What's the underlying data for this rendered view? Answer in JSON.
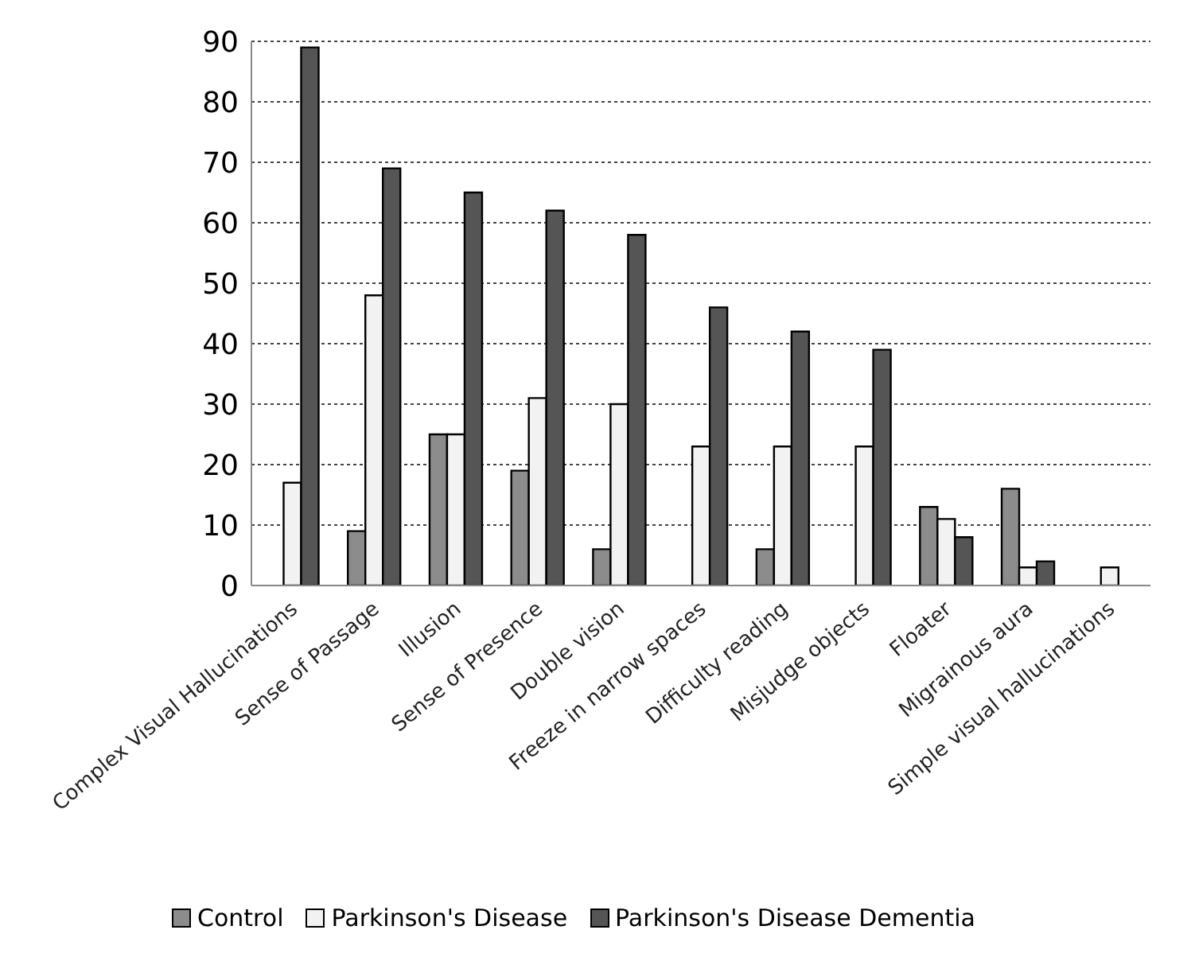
{
  "chart_data": {
    "type": "bar",
    "categories": [
      "Complex Visual Hallucinations",
      "Sense of Passage",
      "Illusion",
      "Sense of Presence",
      "Double vision",
      "Freeze in narrow spaces",
      "Difficulty reading",
      "Misjudge objects",
      "Floater",
      "Migrainous aura",
      "Simple visual hallucinations"
    ],
    "series": [
      {
        "name": "Control",
        "color": "#8c8c8c",
        "values": [
          0,
          9,
          25,
          19,
          6,
          0,
          6,
          0,
          13,
          16,
          0
        ]
      },
      {
        "name": "Parkinson's Disease",
        "color": "#f2f2f2",
        "values": [
          17,
          48,
          25,
          31,
          30,
          23,
          23,
          23,
          11,
          3,
          3
        ]
      },
      {
        "name": "Parkinson's Disease Dementia",
        "color": "#555555",
        "values": [
          89,
          69,
          65,
          62,
          58,
          46,
          42,
          39,
          8,
          4,
          0
        ]
      }
    ],
    "ylim": [
      0,
      90
    ],
    "yticks": [
      0,
      10,
      20,
      30,
      40,
      50,
      60,
      70,
      80,
      90
    ],
    "grid": "y",
    "legend": "bottom"
  }
}
